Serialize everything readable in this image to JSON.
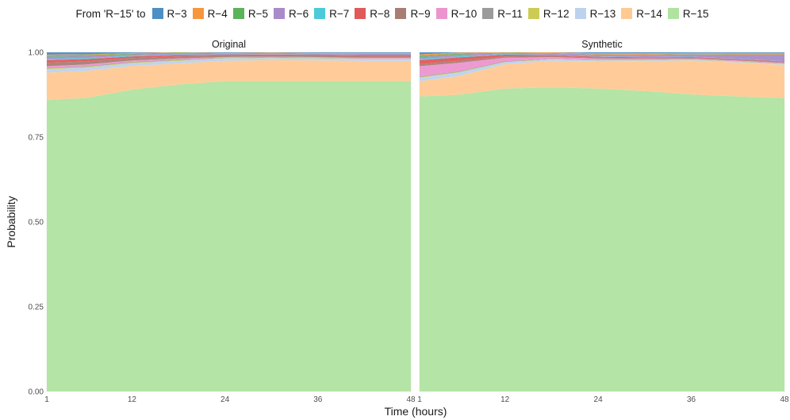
{
  "legend": {
    "title": "From 'R−15' to",
    "items": [
      {
        "label": "R−3",
        "color": "#4e8fc3"
      },
      {
        "label": "R−4",
        "color": "#f7963e"
      },
      {
        "label": "R−5",
        "color": "#5bb35c"
      },
      {
        "label": "R−6",
        "color": "#a98bca"
      },
      {
        "label": "R−7",
        "color": "#4bcad8"
      },
      {
        "label": "R−8",
        "color": "#e05a5a"
      },
      {
        "label": "R−9",
        "color": "#a87d74"
      },
      {
        "label": "R−10",
        "color": "#ec95cd"
      },
      {
        "label": "R−11",
        "color": "#9b9b9b"
      },
      {
        "label": "R−12",
        "color": "#cccc55"
      },
      {
        "label": "R−13",
        "color": "#bcd2ee"
      },
      {
        "label": "R−14",
        "color": "#ffc994"
      },
      {
        "label": "R−15",
        "color": "#b0e3a1"
      }
    ]
  },
  "axes": {
    "ylabel": "Probability",
    "xlabel": "Time (hours)",
    "x_ticks": [
      "1",
      "12",
      "24",
      "36",
      "48"
    ],
    "y_ticks": [
      "0.00",
      "0.25",
      "0.50",
      "0.75",
      "1.00"
    ]
  },
  "chart_data": [
    {
      "type": "area",
      "title": "Original",
      "x": [
        1,
        6,
        12,
        18,
        24,
        30,
        36,
        42,
        48
      ],
      "xlim": [
        1,
        48
      ],
      "ylim": [
        0,
        1
      ],
      "stacking": "stacked to 1.00; series listed bottom to top",
      "series": [
        {
          "name": "R−15",
          "values": [
            0.86,
            0.865,
            0.89,
            0.905,
            0.915,
            0.915,
            0.915,
            0.915,
            0.915
          ]
        },
        {
          "name": "R−14",
          "values": [
            0.08,
            0.08,
            0.07,
            0.062,
            0.06,
            0.062,
            0.061,
            0.06,
            0.06
          ]
        },
        {
          "name": "R−13",
          "values": [
            0.01,
            0.01,
            0.008,
            0.008,
            0.007,
            0.006,
            0.006,
            0.005,
            0.005
          ]
        },
        {
          "name": "R−12",
          "values": [
            0.002,
            0.002,
            0.002,
            0.002,
            0.001,
            0.001,
            0.001,
            0.001,
            0.001
          ]
        },
        {
          "name": "R−11",
          "values": [
            0.002,
            0.002,
            0.002,
            0.002,
            0.001,
            0.001,
            0.001,
            0.001,
            0.001
          ]
        },
        {
          "name": "R−10",
          "values": [
            0.005,
            0.005,
            0.004,
            0.003,
            0.002,
            0.002,
            0.002,
            0.002,
            0.002
          ]
        },
        {
          "name": "R−9",
          "values": [
            0.01,
            0.009,
            0.007,
            0.006,
            0.004,
            0.004,
            0.004,
            0.004,
            0.004
          ]
        },
        {
          "name": "R−8",
          "values": [
            0.008,
            0.007,
            0.005,
            0.004,
            0.003,
            0.003,
            0.003,
            0.004,
            0.004
          ]
        },
        {
          "name": "R−7",
          "values": [
            0.003,
            0.003,
            0.002,
            0.002,
            0.001,
            0.001,
            0.001,
            0.001,
            0.001
          ]
        },
        {
          "name": "R−6",
          "values": [
            0.007,
            0.006,
            0.004,
            0.003,
            0.002,
            0.002,
            0.002,
            0.003,
            0.003
          ]
        },
        {
          "name": "R−5",
          "values": [
            0.003,
            0.003,
            0.002,
            0.002,
            0.001,
            0.001,
            0.001,
            0.001,
            0.001
          ]
        },
        {
          "name": "R−4",
          "values": [
            0.003,
            0.002,
            0.002,
            0.002,
            0.001,
            0.001,
            0.001,
            0.001,
            0.001
          ]
        },
        {
          "name": "R−3",
          "values": [
            0.007,
            0.006,
            0.005,
            0.003,
            0.002,
            0.001,
            0.002,
            0.002,
            0.002
          ]
        }
      ]
    },
    {
      "type": "area",
      "title": "Synthetic",
      "x": [
        1,
        6,
        12,
        18,
        24,
        30,
        36,
        42,
        48
      ],
      "xlim": [
        1,
        48
      ],
      "ylim": [
        0,
        1
      ],
      "stacking": "stacked to 1.00; series listed bottom to top",
      "series": [
        {
          "name": "R−15",
          "values": [
            0.87,
            0.875,
            0.893,
            0.897,
            0.893,
            0.886,
            0.876,
            0.87,
            0.865
          ]
        },
        {
          "name": "R−14",
          "values": [
            0.045,
            0.055,
            0.072,
            0.078,
            0.08,
            0.088,
            0.1,
            0.1,
            0.098
          ]
        },
        {
          "name": "R−13",
          "values": [
            0.01,
            0.01,
            0.006,
            0.004,
            0.003,
            0.002,
            0.002,
            0.002,
            0.002
          ]
        },
        {
          "name": "R−12",
          "values": [
            0.002,
            0.002,
            0.001,
            0.001,
            0.001,
            0.001,
            0.001,
            0.001,
            0.001
          ]
        },
        {
          "name": "R−11",
          "values": [
            0.002,
            0.002,
            0.002,
            0.001,
            0.001,
            0.001,
            0.001,
            0.001,
            0.001
          ]
        },
        {
          "name": "R−10",
          "values": [
            0.03,
            0.025,
            0.01,
            0.005,
            0.004,
            0.003,
            0.002,
            0.002,
            0.002
          ]
        },
        {
          "name": "R−9",
          "values": [
            0.006,
            0.006,
            0.004,
            0.003,
            0.002,
            0.002,
            0.002,
            0.002,
            0.002
          ]
        },
        {
          "name": "R−8",
          "values": [
            0.012,
            0.01,
            0.005,
            0.003,
            0.003,
            0.002,
            0.002,
            0.002,
            0.002
          ]
        },
        {
          "name": "R−7",
          "values": [
            0.003,
            0.003,
            0.002,
            0.001,
            0.001,
            0.001,
            0.001,
            0.001,
            0.001
          ]
        },
        {
          "name": "R−6",
          "values": [
            0.006,
            0.005,
            0.003,
            0.004,
            0.005,
            0.006,
            0.007,
            0.012,
            0.019
          ]
        },
        {
          "name": "R−5",
          "values": [
            0.004,
            0.003,
            0.001,
            0.001,
            0.001,
            0.001,
            0.001,
            0.001,
            0.001
          ]
        },
        {
          "name": "R−4",
          "values": [
            0.004,
            0.003,
            0.001,
            0.002,
            0.003,
            0.004,
            0.003,
            0.004,
            0.004
          ]
        },
        {
          "name": "R−3",
          "values": [
            0.006,
            0.001,
            0.0,
            0.002,
            0.003,
            0.003,
            0.002,
            0.002,
            0.002
          ]
        }
      ]
    }
  ]
}
